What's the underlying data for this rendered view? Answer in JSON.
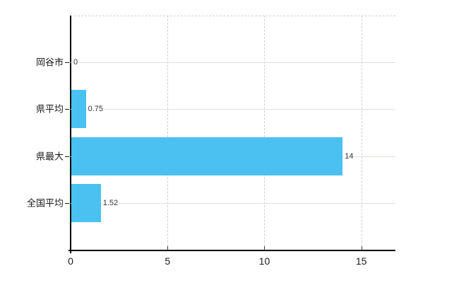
{
  "chart_data": {
    "type": "bar",
    "orientation": "horizontal",
    "title": "",
    "xlabel": "",
    "ylabel": "",
    "categories": [
      "岡谷市",
      "県平均",
      "県最大",
      "全国平均"
    ],
    "values": [
      0,
      0.75,
      14,
      1.52
    ],
    "value_labels": [
      "0",
      "0.75",
      "14",
      "1.52"
    ],
    "x_ticks": [
      0,
      5,
      10,
      15
    ],
    "x_tick_labels": [
      "0",
      "5",
      "10",
      "15"
    ],
    "xlim": [
      0,
      16.76
    ],
    "grid": true,
    "legend": false,
    "colors": {
      "bar": "#4ac1f0",
      "h_grid": "#dce0da",
      "v_grid": "#cfcfcf",
      "axis": "#000000",
      "text": "#1a1a1a"
    }
  }
}
